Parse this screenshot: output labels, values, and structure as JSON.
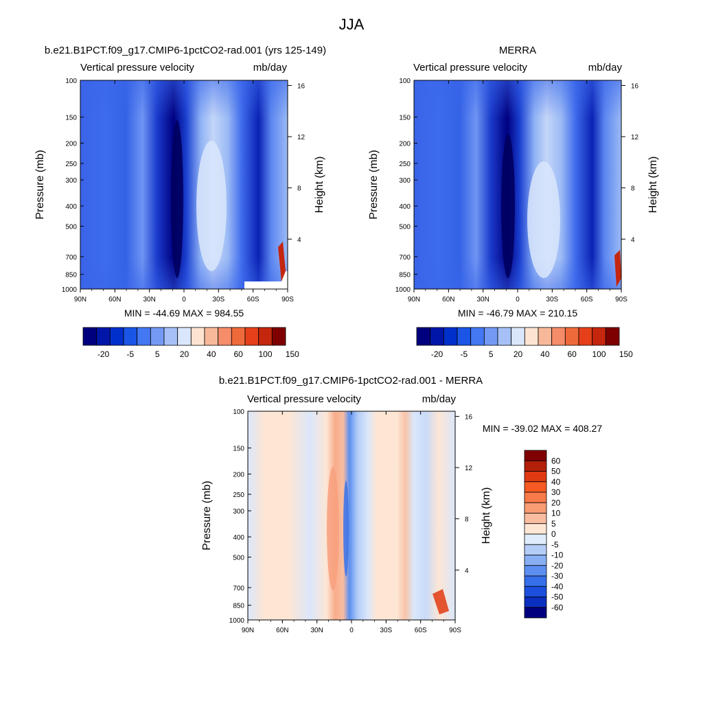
{
  "figure": {
    "title": "JJA"
  },
  "chart_data": [
    {
      "type": "heatmap",
      "title": "b.e21.B1PCT.f09_g17.CMIP6-1pctCO2-rad.001 (yrs 125-149)",
      "subtitle_left": "Vertical pressure velocity",
      "subtitle_right": "mb/day",
      "ylabel": "Pressure (mb)",
      "ylabel_right": "Height (km)",
      "x_ticks": [
        "90N",
        "60N",
        "30N",
        "0",
        "30S",
        "60S",
        "90S"
      ],
      "y_ticks": [
        "100",
        "150",
        "200",
        "250",
        "300",
        "400",
        "500",
        "700",
        "850",
        "1000"
      ],
      "y_ticks_right": [
        "16",
        "12",
        "8",
        "4"
      ],
      "stats": "MIN = -44.69  MAX = 984.55",
      "colorbar": {
        "orientation": "horizontal",
        "labels": [
          "-20",
          "-5",
          "5",
          "20",
          "40",
          "60",
          "100",
          "150"
        ],
        "colors": [
          "#00007f",
          "#0016a8",
          "#0030cc",
          "#1a55e6",
          "#4477f2",
          "#7399f5",
          "#a6c0f7",
          "#d9e6fb",
          "#fde4d0",
          "#f7b89a",
          "#f58c6a",
          "#ef6a3a",
          "#e5401a",
          "#c4260e",
          "#7f0000"
        ]
      }
    },
    {
      "type": "heatmap",
      "title": "MERRA",
      "subtitle_left": "Vertical pressure velocity",
      "subtitle_right": "mb/day",
      "ylabel": "Pressure (mb)",
      "ylabel_right": "Height (km)",
      "x_ticks": [
        "90N",
        "60N",
        "30N",
        "0",
        "30S",
        "60S",
        "90S"
      ],
      "y_ticks": [
        "100",
        "150",
        "200",
        "250",
        "300",
        "400",
        "500",
        "700",
        "850",
        "1000"
      ],
      "y_ticks_right": [
        "16",
        "12",
        "8",
        "4"
      ],
      "stats": "MIN = -46.79  MAX = 210.15",
      "colorbar": {
        "orientation": "horizontal",
        "labels": [
          "-20",
          "-5",
          "5",
          "20",
          "40",
          "60",
          "100",
          "150"
        ],
        "colors": [
          "#00007f",
          "#0016a8",
          "#0030cc",
          "#1a55e6",
          "#4477f2",
          "#7399f5",
          "#a6c0f7",
          "#d9e6fb",
          "#fde4d0",
          "#f7b89a",
          "#f58c6a",
          "#ef6a3a",
          "#e5401a",
          "#c4260e",
          "#7f0000"
        ]
      }
    },
    {
      "type": "heatmap",
      "title": "b.e21.B1PCT.f09_g17.CMIP6-1pctCO2-rad.001 - MERRA",
      "subtitle_left": "Vertical pressure velocity",
      "subtitle_right": "mb/day",
      "ylabel": "Pressure (mb)",
      "ylabel_right": "Height (km)",
      "x_ticks": [
        "90N",
        "60N",
        "30N",
        "0",
        "30S",
        "60S",
        "90S"
      ],
      "y_ticks": [
        "100",
        "150",
        "200",
        "250",
        "300",
        "400",
        "500",
        "700",
        "850",
        "1000"
      ],
      "y_ticks_right": [
        "16",
        "12",
        "8",
        "4"
      ],
      "stats": "MIN = -39.02  MAX = 408.27",
      "colorbar": {
        "orientation": "vertical",
        "labels": [
          "60",
          "50",
          "40",
          "30",
          "20",
          "10",
          "5",
          "0",
          "-5",
          "-10",
          "-20",
          "-30",
          "-40",
          "-50",
          "-60"
        ],
        "colors": [
          "#7f0000",
          "#b3200a",
          "#e03a12",
          "#f65a22",
          "#f87a48",
          "#f89c74",
          "#f9bda0",
          "#fde6d4",
          "#e0ecfb",
          "#b4cdf7",
          "#88aef4",
          "#5c8ff0",
          "#3570ea",
          "#1c4fde",
          "#0b2fc0",
          "#00007f"
        ]
      }
    }
  ]
}
